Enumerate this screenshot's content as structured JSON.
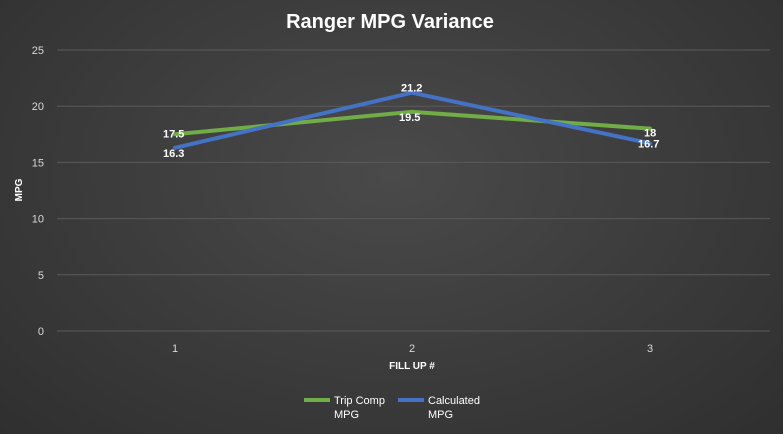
{
  "chart_data": {
    "type": "line",
    "title": "Ranger MPG Variance",
    "xlabel": "FILL UP #",
    "ylabel": "MPG",
    "categories": [
      "1",
      "2",
      "3"
    ],
    "ylim": [
      0,
      25
    ],
    "yticks": [
      0,
      5,
      10,
      15,
      20,
      25
    ],
    "grid": true,
    "legend_position": "bottom",
    "series": [
      {
        "name": "Trip Comp MPG",
        "legend_lines": [
          "Trip Comp",
          "MPG"
        ],
        "color": "#70ad47",
        "values": [
          17.5,
          19.5,
          18
        ],
        "labels": [
          "17.5",
          "19.5",
          "18"
        ]
      },
      {
        "name": "Calculated MPG",
        "legend_lines": [
          "Calculated",
          "MPG"
        ],
        "color": "#4472c4",
        "values": [
          16.3,
          21.2,
          16.7
        ],
        "labels": [
          "16.3",
          "21.2",
          "16.7"
        ]
      }
    ]
  }
}
